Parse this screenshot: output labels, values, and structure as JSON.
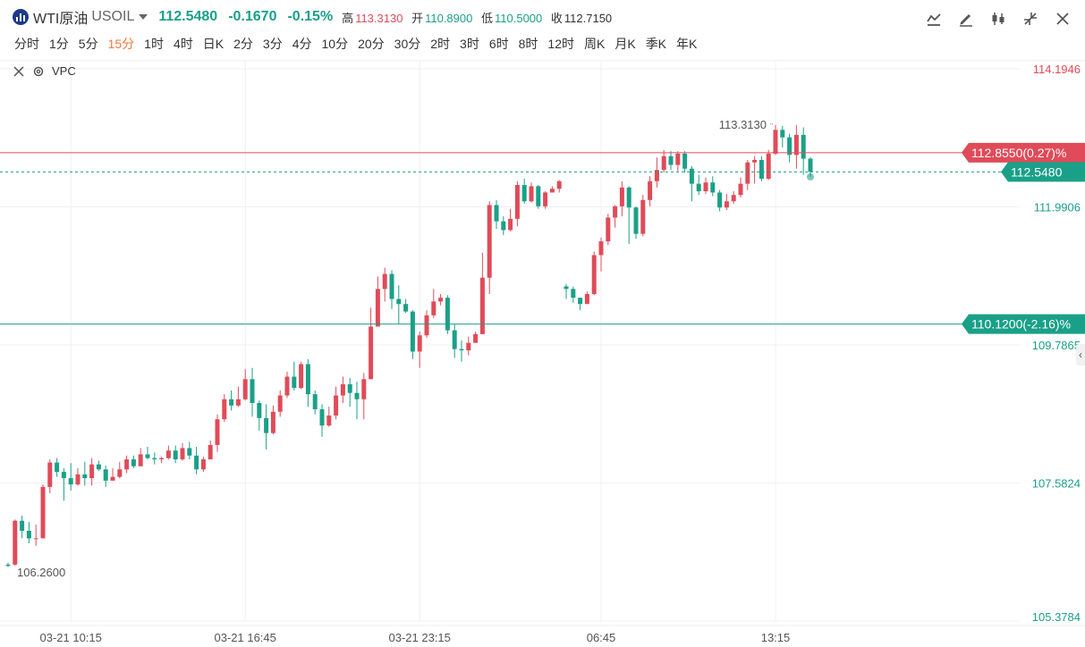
{
  "header": {
    "symbol_name": "WTI原油",
    "symbol_code": "USOIL",
    "last_price": "112.5480",
    "change": "-0.1670",
    "change_pct": "-0.15%",
    "high_label": "高",
    "high_value": "113.3130",
    "open_label": "开",
    "open_value": "110.8900",
    "low_label": "低",
    "low_value": "110.5000",
    "close_label": "收",
    "close_value": "112.7150",
    "tools": [
      "line-chart-icon",
      "pencil-icon",
      "candle-icon",
      "shrink-icon",
      "close-icon"
    ]
  },
  "periods": {
    "items": [
      "分时",
      "1分",
      "5分",
      "15分",
      "1时",
      "4时",
      "日K",
      "2分",
      "3分",
      "4分",
      "10分",
      "20分",
      "30分",
      "2时",
      "3时",
      "6时",
      "8时",
      "12时",
      "周K",
      "月K",
      "季K",
      "年K"
    ],
    "active": "15分"
  },
  "study": {
    "label": "VPC"
  },
  "colors": {
    "up": "#e04b59",
    "down": "#1aa088",
    "grid": "#f0f0f0"
  },
  "chart_data": {
    "type": "candlestick",
    "x_tick_labels": [
      "03-21 10:15",
      "03-21 16:45",
      "03-21 23:15",
      "06:45",
      "13:15"
    ],
    "y_tick_labels": [
      "114.1946",
      "111.9906",
      "109.7865",
      "107.5824",
      "105.3784"
    ],
    "y_ticks": [
      114.1946,
      111.9906,
      109.7865,
      107.5824,
      105.3784
    ],
    "ylim": [
      105.3784,
      114.1946
    ],
    "price_lines": [
      {
        "value": 112.855,
        "label": "112.8550(0.27)%",
        "color": "#e04b59",
        "style": "solid"
      },
      {
        "value": 110.12,
        "label": "110.1200(-2.16)%",
        "color": "#1aa088",
        "style": "solid"
      },
      {
        "value": 112.548,
        "label": "112.5480",
        "color": "#1aa088",
        "style": "dashed"
      }
    ],
    "annotations": [
      {
        "text": "113.3130",
        "value": 113.313
      },
      {
        "text": "106.2600",
        "value": 106.26
      }
    ],
    "candles": [
      [
        106.28,
        106.26,
        106.31,
        106.24
      ],
      [
        106.28,
        106.98,
        107.0,
        106.26
      ],
      [
        106.98,
        106.82,
        107.06,
        106.7
      ],
      [
        106.82,
        106.7,
        106.96,
        106.62
      ],
      [
        106.7,
        106.7,
        106.92,
        106.58
      ],
      [
        106.7,
        107.52,
        107.56,
        106.7
      ],
      [
        107.52,
        107.91,
        107.96,
        107.42
      ],
      [
        107.91,
        107.76,
        107.98,
        107.68
      ],
      [
        107.76,
        107.66,
        107.82,
        107.3
      ],
      [
        107.66,
        107.56,
        107.9,
        107.46
      ],
      [
        107.56,
        107.72,
        107.82,
        107.54
      ],
      [
        107.72,
        107.66,
        107.92,
        107.54
      ],
      [
        107.66,
        107.88,
        107.98,
        107.54
      ],
      [
        107.88,
        107.8,
        107.94,
        107.78
      ],
      [
        107.8,
        107.62,
        107.86,
        107.52
      ],
      [
        107.62,
        107.68,
        107.82,
        107.62
      ],
      [
        107.68,
        107.8,
        107.92,
        107.66
      ],
      [
        107.8,
        107.96,
        108.02,
        107.74
      ],
      [
        107.96,
        107.85,
        108.02,
        107.82
      ],
      [
        107.85,
        108.04,
        108.14,
        107.85
      ],
      [
        108.04,
        107.98,
        108.16,
        107.96
      ],
      [
        107.98,
        107.96,
        108.07,
        107.88
      ],
      [
        107.96,
        107.98,
        108.0,
        107.9
      ],
      [
        107.98,
        108.1,
        108.18,
        107.96
      ],
      [
        108.1,
        107.96,
        108.18,
        107.9
      ],
      [
        107.96,
        108.14,
        108.22,
        107.94
      ],
      [
        108.14,
        108.02,
        108.24,
        107.96
      ],
      [
        108.02,
        107.8,
        108.16,
        107.72
      ],
      [
        107.8,
        107.96,
        108.0,
        107.76
      ],
      [
        107.96,
        108.19,
        108.26,
        107.96
      ],
      [
        108.19,
        108.6,
        108.68,
        108.08
      ],
      [
        108.6,
        108.92,
        109.0,
        108.56
      ],
      [
        108.92,
        108.82,
        109.06,
        108.74
      ],
      [
        108.82,
        108.92,
        109.12,
        108.8
      ],
      [
        108.92,
        109.24,
        109.4,
        108.9
      ],
      [
        109.24,
        108.86,
        109.42,
        108.64
      ],
      [
        108.86,
        108.62,
        108.9,
        108.42
      ],
      [
        108.62,
        108.38,
        108.84,
        108.12
      ],
      [
        108.38,
        108.72,
        108.82,
        108.36
      ],
      [
        108.72,
        108.98,
        109.06,
        108.64
      ],
      [
        108.98,
        109.28,
        109.36,
        108.94
      ],
      [
        109.28,
        109.1,
        109.52,
        109.06
      ],
      [
        109.1,
        109.48,
        109.52,
        109.08
      ],
      [
        109.48,
        109.0,
        109.56,
        108.8
      ],
      [
        109.0,
        108.76,
        109.06,
        108.68
      ],
      [
        108.76,
        108.5,
        108.84,
        108.32
      ],
      [
        108.5,
        108.66,
        108.8,
        108.48
      ],
      [
        108.66,
        108.98,
        109.12,
        108.6
      ],
      [
        108.98,
        109.16,
        109.28,
        108.86
      ],
      [
        109.16,
        109.02,
        109.26,
        108.8
      ],
      [
        109.02,
        108.92,
        109.2,
        108.6
      ],
      [
        108.92,
        109.24,
        109.34,
        108.6
      ],
      [
        109.24,
        110.08,
        110.38,
        109.24
      ],
      [
        110.08,
        110.68,
        110.88,
        110.08
      ],
      [
        110.68,
        110.92,
        111.02,
        110.48
      ],
      [
        110.92,
        110.52,
        110.98,
        110.36
      ],
      [
        110.52,
        110.44,
        110.74,
        110.12
      ],
      [
        110.44,
        110.32,
        110.52,
        110.3
      ],
      [
        110.32,
        109.68,
        110.34,
        109.56
      ],
      [
        109.68,
        109.94,
        110.0,
        109.42
      ],
      [
        109.94,
        110.26,
        110.34,
        109.9
      ],
      [
        110.26,
        110.48,
        110.68,
        110.22
      ],
      [
        110.48,
        110.54,
        110.6,
        110.42
      ],
      [
        110.54,
        110.02,
        110.58,
        109.96
      ],
      [
        110.02,
        109.72,
        110.12,
        109.58
      ],
      [
        109.72,
        109.7,
        109.86,
        109.52
      ],
      [
        109.7,
        109.82,
        109.92,
        109.62
      ],
      [
        109.82,
        109.96,
        110.0,
        109.84
      ],
      [
        109.96,
        110.86,
        111.26,
        109.96
      ],
      [
        110.86,
        112.02,
        112.08,
        110.6
      ],
      [
        112.02,
        111.76,
        112.1,
        111.64
      ],
      [
        111.76,
        111.62,
        111.84,
        111.54
      ],
      [
        111.62,
        111.8,
        111.96,
        111.6
      ],
      [
        111.8,
        112.34,
        112.4,
        111.68
      ],
      [
        112.34,
        112.08,
        112.44,
        112.04
      ],
      [
        112.08,
        112.32,
        112.38,
        112.06
      ],
      [
        112.32,
        112.0,
        112.34,
        111.96
      ],
      [
        112.0,
        112.22,
        112.24,
        111.96
      ],
      [
        112.22,
        112.28,
        112.32,
        112.24
      ],
      [
        112.28,
        112.4,
        112.42,
        112.22
      ],
      [
        110.72,
        110.68,
        110.76,
        110.52
      ],
      [
        110.68,
        110.54,
        110.72,
        110.46
      ],
      [
        110.54,
        110.44,
        110.54,
        110.34
      ],
      [
        110.44,
        110.6,
        110.64,
        110.44
      ],
      [
        110.6,
        111.22,
        111.28,
        110.58
      ],
      [
        111.22,
        111.44,
        111.5,
        110.96
      ],
      [
        111.44,
        111.82,
        111.88,
        111.38
      ],
      [
        111.82,
        112.0,
        112.02,
        111.66
      ],
      [
        112.0,
        112.3,
        112.4,
        111.84
      ],
      [
        112.3,
        111.98,
        112.32,
        111.4
      ],
      [
        111.98,
        111.56,
        112.0,
        111.48
      ],
      [
        111.56,
        112.1,
        112.18,
        111.52
      ],
      [
        112.1,
        112.4,
        112.48,
        112.0
      ],
      [
        112.4,
        112.58,
        112.78,
        112.3
      ],
      [
        112.58,
        112.8,
        112.9,
        112.54
      ],
      [
        112.8,
        112.66,
        112.88,
        112.58
      ],
      [
        112.66,
        112.84,
        112.88,
        112.56
      ],
      [
        112.84,
        112.6,
        112.88,
        112.54
      ],
      [
        112.6,
        112.36,
        112.64,
        112.08
      ],
      [
        112.36,
        112.24,
        112.5,
        112.18
      ],
      [
        112.24,
        112.38,
        112.46,
        112.2
      ],
      [
        112.38,
        112.22,
        112.48,
        112.16
      ],
      [
        112.22,
        111.98,
        112.26,
        111.92
      ],
      [
        111.98,
        112.08,
        112.2,
        111.94
      ],
      [
        112.08,
        112.18,
        112.24,
        112.04
      ],
      [
        112.18,
        112.36,
        112.46,
        112.14
      ],
      [
        112.36,
        112.7,
        112.74,
        112.26
      ],
      [
        112.7,
        112.74,
        112.8,
        112.36
      ],
      [
        112.74,
        112.44,
        112.8,
        112.4
      ],
      [
        112.44,
        112.84,
        112.9,
        112.42
      ],
      [
        112.84,
        113.22,
        113.3,
        112.82
      ],
      [
        113.22,
        113.1,
        113.28,
        112.94
      ],
      [
        113.1,
        112.82,
        113.16,
        112.7
      ],
      [
        112.82,
        113.14,
        113.3,
        112.6
      ],
      [
        113.14,
        112.76,
        113.26,
        112.5
      ],
      [
        112.76,
        112.55,
        112.78,
        112.47
      ]
    ]
  }
}
